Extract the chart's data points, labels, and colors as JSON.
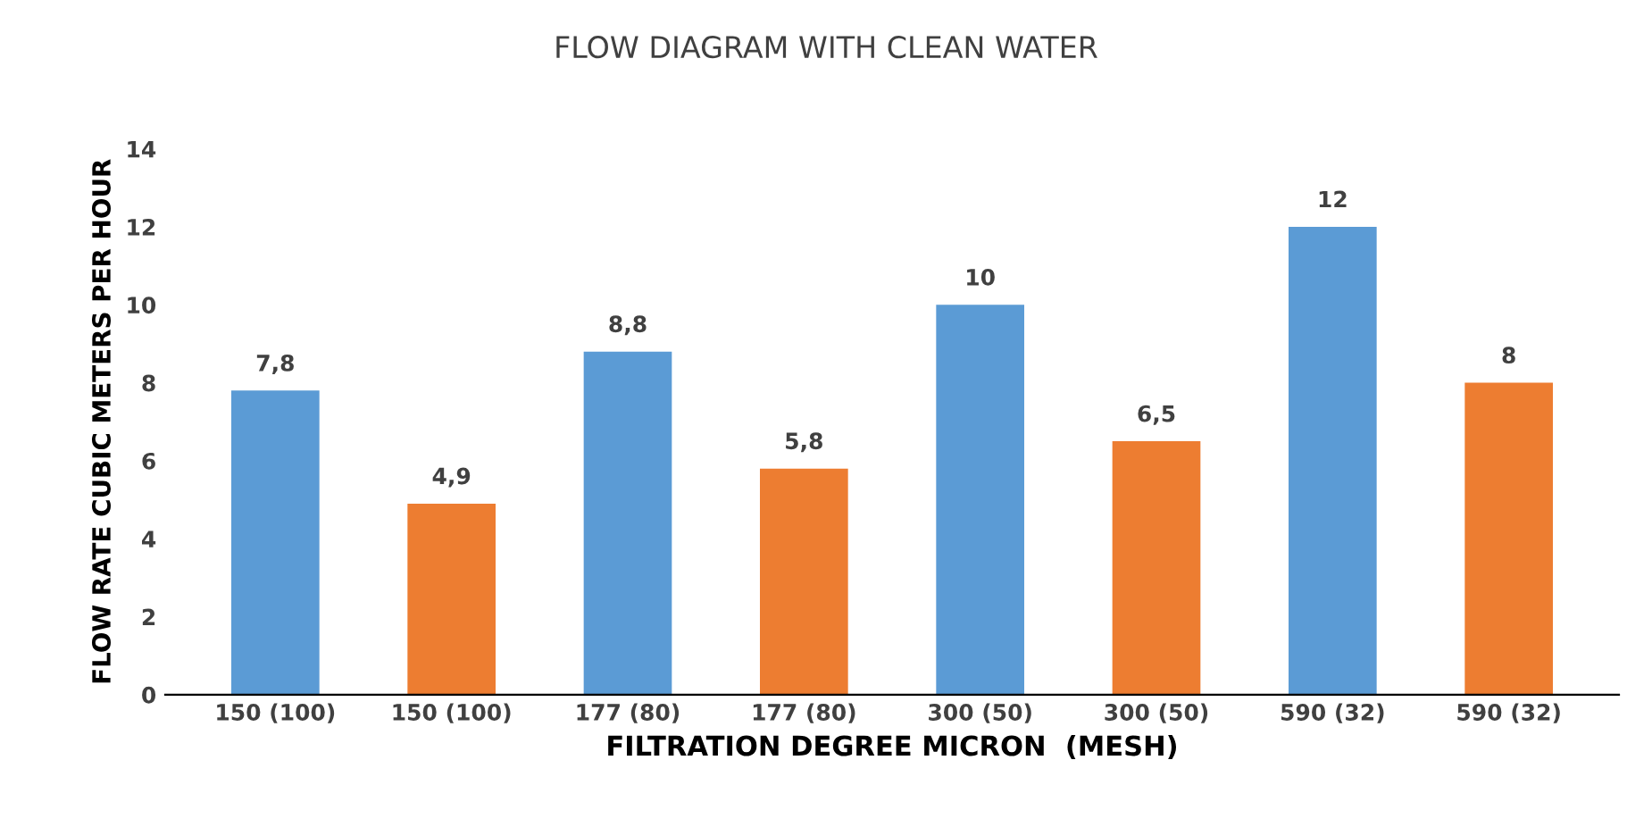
{
  "chart_data": {
    "type": "bar",
    "title": "FLOW DIAGRAM WITH CLEAN WATER",
    "xlabel": "FILTRATION DEGREE MICRON  (MESH)",
    "ylabel": "FLOW RATE CUBIC METERS PER HOUR",
    "categories": [
      "150 (100)",
      "150 (100)",
      "177 (80)",
      "177 (80)",
      "300 (50)",
      "300 (50)",
      "590 (32)",
      "590 (32)"
    ],
    "values": [
      7.8,
      4.9,
      8.8,
      5.8,
      10,
      6.5,
      12,
      8
    ],
    "value_labels": [
      "7,8",
      "4,9",
      "8,8",
      "5,8",
      "10",
      "6,5",
      "12",
      "8"
    ],
    "colors": [
      "#5b9bd5",
      "#ed7d31",
      "#5b9bd5",
      "#ed7d31",
      "#5b9bd5",
      "#ed7d31",
      "#5b9bd5",
      "#ed7d31"
    ],
    "ylim": [
      0,
      14
    ],
    "yticks": [
      0,
      2,
      4,
      6,
      8,
      10,
      12,
      14
    ],
    "grid": false
  }
}
